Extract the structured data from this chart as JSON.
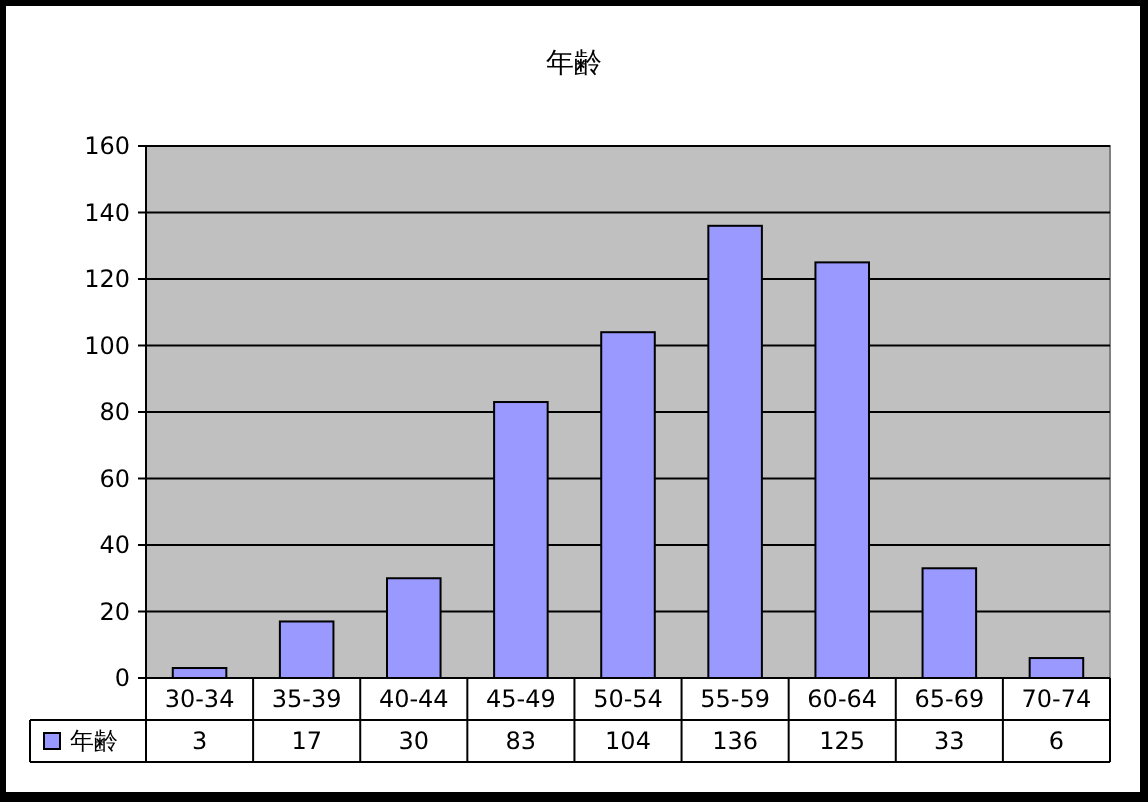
{
  "chart_data": {
    "type": "bar",
    "title": "年齢",
    "categories": [
      "30-34",
      "35-39",
      "40-44",
      "45-49",
      "50-54",
      "55-59",
      "60-64",
      "65-69",
      "70-74"
    ],
    "series": [
      {
        "name": "年齢",
        "color": "#9999ff",
        "values": [
          3,
          17,
          30,
          83,
          104,
          136,
          125,
          33,
          6
        ]
      }
    ],
    "ylim": [
      0,
      160
    ],
    "yticks": [
      0,
      20,
      40,
      60,
      80,
      100,
      120,
      140,
      160
    ],
    "grid": "y",
    "legend": "bottom",
    "data_labels": true
  }
}
